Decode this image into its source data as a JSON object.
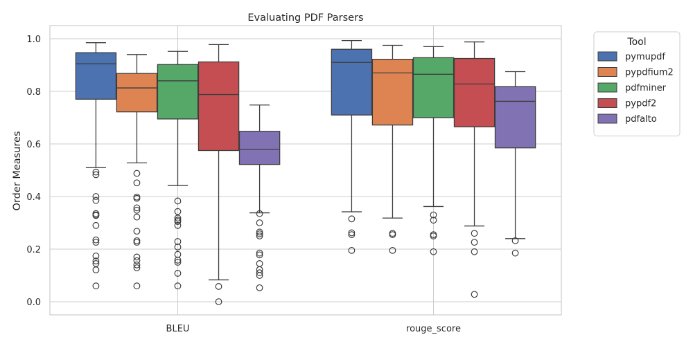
{
  "chart_data": {
    "type": "box",
    "title": "Evaluating PDF Parsers",
    "xlabel": "",
    "ylabel": "Order Measures",
    "ylim": [
      -0.05,
      1.05
    ],
    "yticks": [
      0.0,
      0.2,
      0.4,
      0.6,
      0.8,
      1.0
    ],
    "ytick_labels": [
      "0.0",
      "0.2",
      "0.4",
      "0.6",
      "0.8",
      "1.0"
    ],
    "categories": [
      "BLEU",
      "rouge_score"
    ],
    "grid": true,
    "legend": {
      "title": "Tool",
      "placement": "outside-right"
    },
    "series": [
      {
        "name": "pymupdf",
        "color": "#4c72b0",
        "boxes": [
          {
            "whislo": 0.51,
            "q1": 0.77,
            "med": 0.905,
            "q3": 0.947,
            "whishi": 0.985,
            "fliers": [
              0.493,
              0.483,
              0.4,
              0.385,
              0.335,
              0.33,
              0.328,
              0.29,
              0.235,
              0.226,
              0.174,
              0.155,
              0.145,
              0.121,
              0.06
            ]
          },
          {
            "whislo": 0.342,
            "q1": 0.71,
            "med": 0.91,
            "q3": 0.96,
            "whishi": 0.993,
            "fliers": [
              0.315,
              0.262,
              0.255,
              0.195
            ]
          }
        ]
      },
      {
        "name": "pypdfium2",
        "color": "#dd8452",
        "boxes": [
          {
            "whislo": 0.528,
            "q1": 0.722,
            "med": 0.813,
            "q3": 0.868,
            "whishi": 0.94,
            "fliers": [
              0.488,
              0.452,
              0.398,
              0.393,
              0.357,
              0.348,
              0.322,
              0.268,
              0.232,
              0.226,
              0.17,
              0.156,
              0.14,
              0.129,
              0.06
            ]
          },
          {
            "whislo": 0.318,
            "q1": 0.672,
            "med": 0.87,
            "q3": 0.922,
            "whishi": 0.975,
            "fliers": [
              0.26,
              0.255,
              0.195
            ]
          }
        ]
      },
      {
        "name": "pdfminer",
        "color": "#55a868",
        "boxes": [
          {
            "whislo": 0.442,
            "q1": 0.695,
            "med": 0.84,
            "q3": 0.902,
            "whishi": 0.952,
            "fliers": [
              0.383,
              0.343,
              0.318,
              0.31,
              0.305,
              0.29,
              0.229,
              0.208,
              0.18,
              0.158,
              0.15,
              0.108,
              0.06
            ]
          },
          {
            "whislo": 0.362,
            "q1": 0.7,
            "med": 0.865,
            "q3": 0.928,
            "whishi": 0.97,
            "fliers": [
              0.33,
              0.31,
              0.255,
              0.25,
              0.19
            ]
          }
        ]
      },
      {
        "name": "pypdf2",
        "color": "#c44e52",
        "boxes": [
          {
            "whislo": 0.083,
            "q1": 0.575,
            "med": 0.788,
            "q3": 0.912,
            "whishi": 0.978,
            "fliers": [
              0.058,
              0.0
            ]
          },
          {
            "whislo": 0.288,
            "q1": 0.665,
            "med": 0.828,
            "q3": 0.925,
            "whishi": 0.988,
            "fliers": [
              0.26,
              0.226,
              0.19,
              0.028
            ]
          }
        ]
      },
      {
        "name": "pdfalto",
        "color": "#8172b3",
        "boxes": [
          {
            "whislo": 0.338,
            "q1": 0.522,
            "med": 0.58,
            "q3": 0.648,
            "whishi": 0.748,
            "fliers": [
              0.335,
              0.3,
              0.265,
              0.258,
              0.25,
              0.185,
              0.178,
              0.145,
              0.122,
              0.11,
              0.1,
              0.053
            ]
          },
          {
            "whislo": 0.24,
            "q1": 0.585,
            "med": 0.762,
            "q3": 0.818,
            "whishi": 0.875,
            "fliers": [
              0.232,
              0.185
            ]
          }
        ]
      }
    ]
  }
}
